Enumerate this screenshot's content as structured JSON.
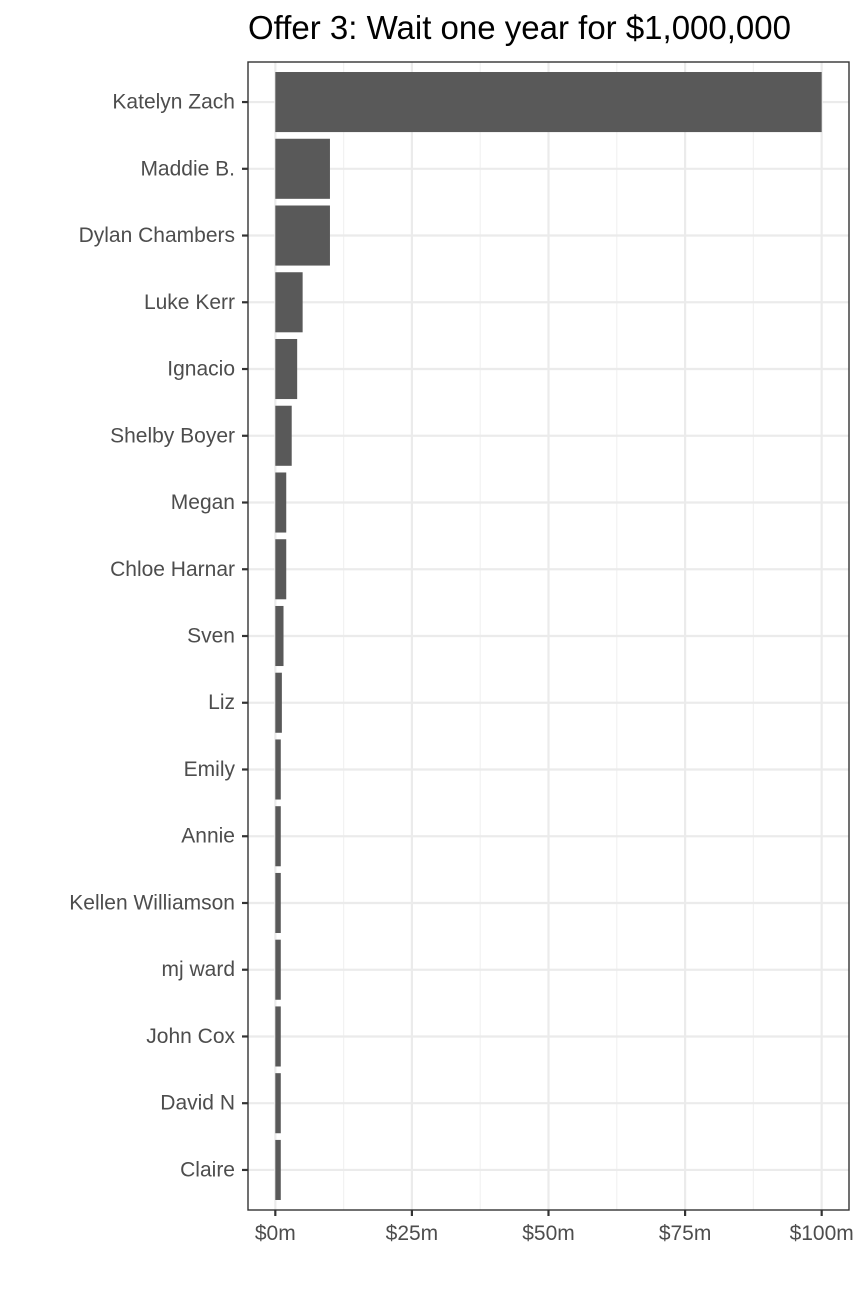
{
  "chart_data": {
    "type": "bar",
    "orientation": "horizontal",
    "title": "Offer 3: Wait one year for $1,000,000",
    "xlabel": "",
    "ylabel": "",
    "categories": [
      "Katelyn Zach",
      "Maddie B.",
      "Dylan Chambers",
      "Luke Kerr",
      "Ignacio",
      "Shelby Boyer",
      "Megan",
      "Chloe Harnar",
      "Sven",
      "Liz",
      "Emily",
      "Annie",
      "Kellen Williamson",
      "mj ward",
      "John Cox",
      "David N",
      "Claire"
    ],
    "values": [
      100,
      10,
      10,
      5,
      4,
      3,
      2,
      2,
      1.5,
      1.2,
      1,
      1,
      1,
      1,
      1,
      1,
      1
    ],
    "value_units": "millions of dollars",
    "xlim": [
      -5,
      105
    ],
    "x_ticks": [
      0,
      25,
      50,
      75,
      100
    ],
    "x_tick_labels": [
      "$0m",
      "$25m",
      "$50m",
      "$75m",
      "$100m"
    ],
    "grid": true,
    "legend": "none",
    "colors": {
      "bar": "#595959",
      "panel_border": "#333333",
      "grid_major": "#ebebeb",
      "grid_minor": "#f2f2f2",
      "tick_text": "#4d4d4d",
      "title_text": "#000000",
      "background": "#ffffff"
    }
  }
}
